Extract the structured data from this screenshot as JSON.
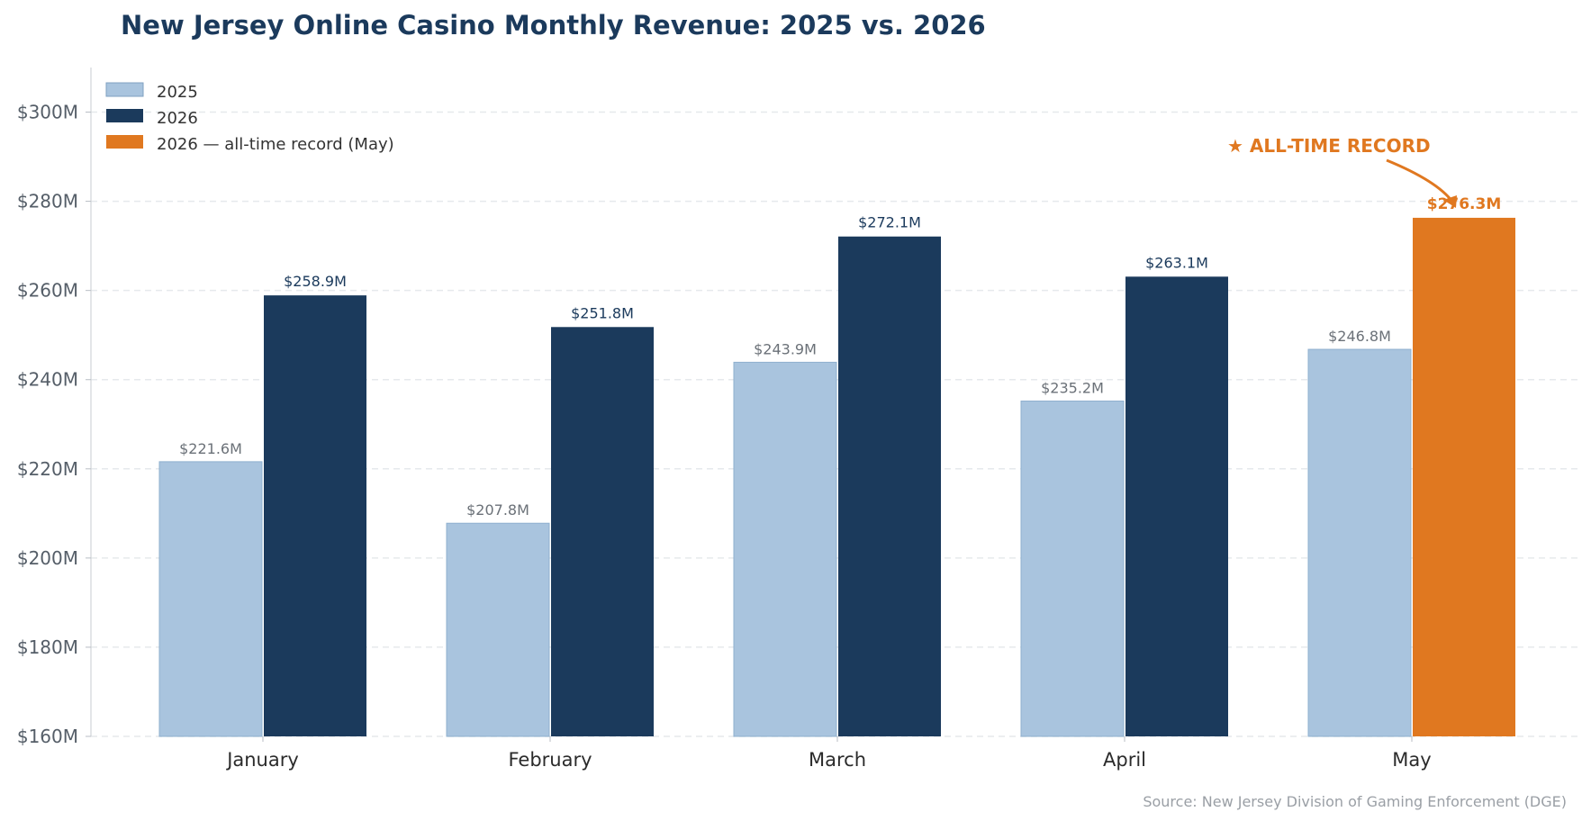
{
  "chart_data": {
    "type": "bar",
    "title": "New Jersey Online Casino Monthly Revenue: 2025 vs. 2026",
    "categories": [
      "January",
      "February",
      "March",
      "April",
      "May"
    ],
    "series": [
      {
        "name": "2025",
        "values": [
          221.6,
          207.8,
          243.9,
          235.2,
          246.8
        ],
        "labels": [
          "$221.6M",
          "$207.8M",
          "$243.9M",
          "$235.2M",
          "$246.8M"
        ],
        "color": "#a9c4de"
      },
      {
        "name": "2026",
        "values": [
          258.9,
          251.8,
          272.1,
          263.1,
          276.3
        ],
        "labels": [
          "$258.9M",
          "$251.8M",
          "$272.1M",
          "$263.1M",
          "$276.3M"
        ],
        "color": "#1b3a5c",
        "highlight_color": "#e07820",
        "highlight_index": 4
      }
    ],
    "legend": [
      "2025",
      "2026",
      "2026 — all-time record (May)"
    ],
    "legend_placement": "top-left",
    "ylim": [
      160,
      310
    ],
    "yticks": [
      160,
      180,
      200,
      220,
      240,
      260,
      280,
      300
    ],
    "ytick_labels": [
      "$160M",
      "$180M",
      "$200M",
      "$220M",
      "$240M",
      "$260M",
      "$280M",
      "$300M"
    ],
    "xlabel": "",
    "ylabel": "",
    "grid": true,
    "annotation": {
      "text": "★  ALL-TIME RECORD",
      "target_category": "May",
      "target_series": "2026"
    },
    "source": "Source: New Jersey Division of Gaming Enforcement (DGE)"
  },
  "colors": {
    "title": "#1b3a5c",
    "series_2025": "#a9c4de",
    "series_2026": "#1b3a5c",
    "record": "#e07820"
  }
}
